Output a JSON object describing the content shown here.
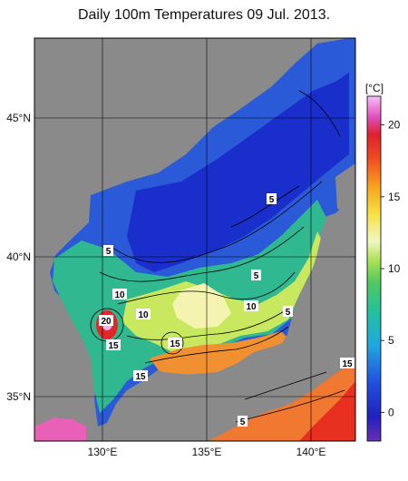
{
  "title": "Daily 100m Temperatures 09 Jul. 2013.",
  "map": {
    "lat_labels": [
      "45°N",
      "40°N",
      "35°N"
    ],
    "lon_labels": [
      "130°E",
      "135°E",
      "140°E"
    ],
    "land_color": "#8a8a8a",
    "grid": true
  },
  "colorbar": {
    "unit_label": "[°C]",
    "ticks": [
      "20",
      "15",
      "10",
      "5",
      "0"
    ],
    "min": -2,
    "max": 22,
    "colors": [
      "#5a1da0",
      "#2030c8",
      "#2050e0",
      "#20a0e8",
      "#20c0b0",
      "#30c070",
      "#70d040",
      "#b0e040",
      "#f0f0a0",
      "#f8e040",
      "#f8a020",
      "#f05020",
      "#e02020",
      "#e060c0",
      "#f0a0f0"
    ]
  },
  "contour_labels": [
    "5",
    "5",
    "5",
    "10",
    "10",
    "10",
    "20",
    "15",
    "15",
    "15",
    "5",
    "15",
    "5"
  ]
}
